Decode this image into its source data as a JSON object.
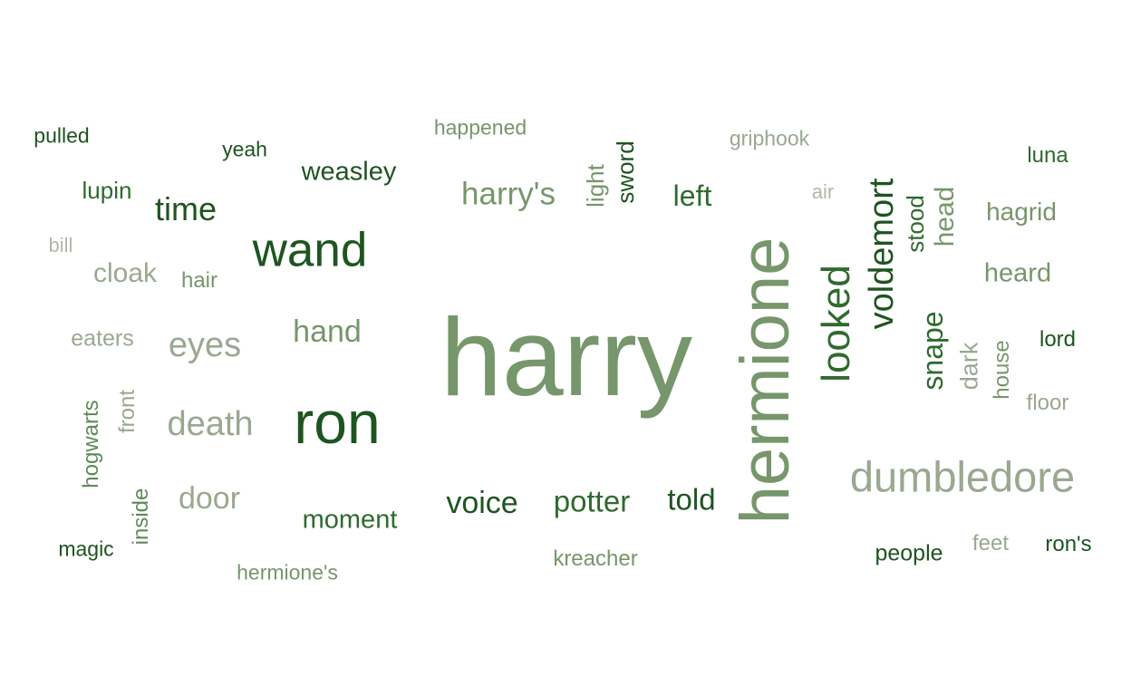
{
  "colors": {
    "dark": "#1e5420",
    "mid_dark": "#2f6a2f",
    "mid": "#5f8a5a",
    "sage": "#77966b",
    "light": "#9aa890",
    "pale": "#b0b8aa"
  },
  "words": [
    {
      "text": "harry",
      "color": "sage"
    },
    {
      "text": "hermione",
      "color": "sage"
    },
    {
      "text": "ron",
      "color": "dark"
    },
    {
      "text": "wand",
      "color": "dark"
    },
    {
      "text": "dumbledore",
      "color": "light"
    },
    {
      "text": "looked",
      "color": "mid_dark"
    },
    {
      "text": "voldemort",
      "color": "dark"
    },
    {
      "text": "eyes",
      "color": "light"
    },
    {
      "text": "death",
      "color": "light"
    },
    {
      "text": "time",
      "color": "dark"
    },
    {
      "text": "harry's",
      "color": "sage"
    },
    {
      "text": "voice",
      "color": "dark"
    },
    {
      "text": "potter",
      "color": "mid_dark"
    },
    {
      "text": "told",
      "color": "dark"
    },
    {
      "text": "hand",
      "color": "sage"
    },
    {
      "text": "door",
      "color": "light"
    },
    {
      "text": "moment",
      "color": "mid_dark"
    },
    {
      "text": "left",
      "color": "mid_dark"
    },
    {
      "text": "snape",
      "color": "mid_dark"
    },
    {
      "text": "weasley",
      "color": "dark"
    },
    {
      "text": "head",
      "color": "sage"
    },
    {
      "text": "heard",
      "color": "sage"
    },
    {
      "text": "hagrid",
      "color": "sage"
    },
    {
      "text": "cloak",
      "color": "light"
    },
    {
      "text": "stood",
      "color": "mid_dark"
    },
    {
      "text": "sword",
      "color": "dark"
    },
    {
      "text": "light",
      "color": "sage"
    },
    {
      "text": "dark",
      "color": "light"
    },
    {
      "text": "house",
      "color": "sage"
    },
    {
      "text": "lupin",
      "color": "mid_dark"
    },
    {
      "text": "eaters",
      "color": "light"
    },
    {
      "text": "hogwarts",
      "color": "mid"
    },
    {
      "text": "front",
      "color": "light"
    },
    {
      "text": "inside",
      "color": "mid"
    },
    {
      "text": "people",
      "color": "dark"
    },
    {
      "text": "feet",
      "color": "light"
    },
    {
      "text": "ron's",
      "color": "dark"
    },
    {
      "text": "kreacher",
      "color": "sage"
    },
    {
      "text": "hermione's",
      "color": "sage"
    },
    {
      "text": "magic",
      "color": "dark"
    },
    {
      "text": "lord",
      "color": "dark"
    },
    {
      "text": "floor",
      "color": "light"
    },
    {
      "text": "luna",
      "color": "mid_dark"
    },
    {
      "text": "griphook",
      "color": "light"
    },
    {
      "text": "happened",
      "color": "sage"
    },
    {
      "text": "yeah",
      "color": "dark"
    },
    {
      "text": "pulled",
      "color": "dark"
    },
    {
      "text": "hair",
      "color": "sage"
    },
    {
      "text": "bill",
      "color": "pale"
    },
    {
      "text": "air",
      "color": "pale"
    }
  ]
}
